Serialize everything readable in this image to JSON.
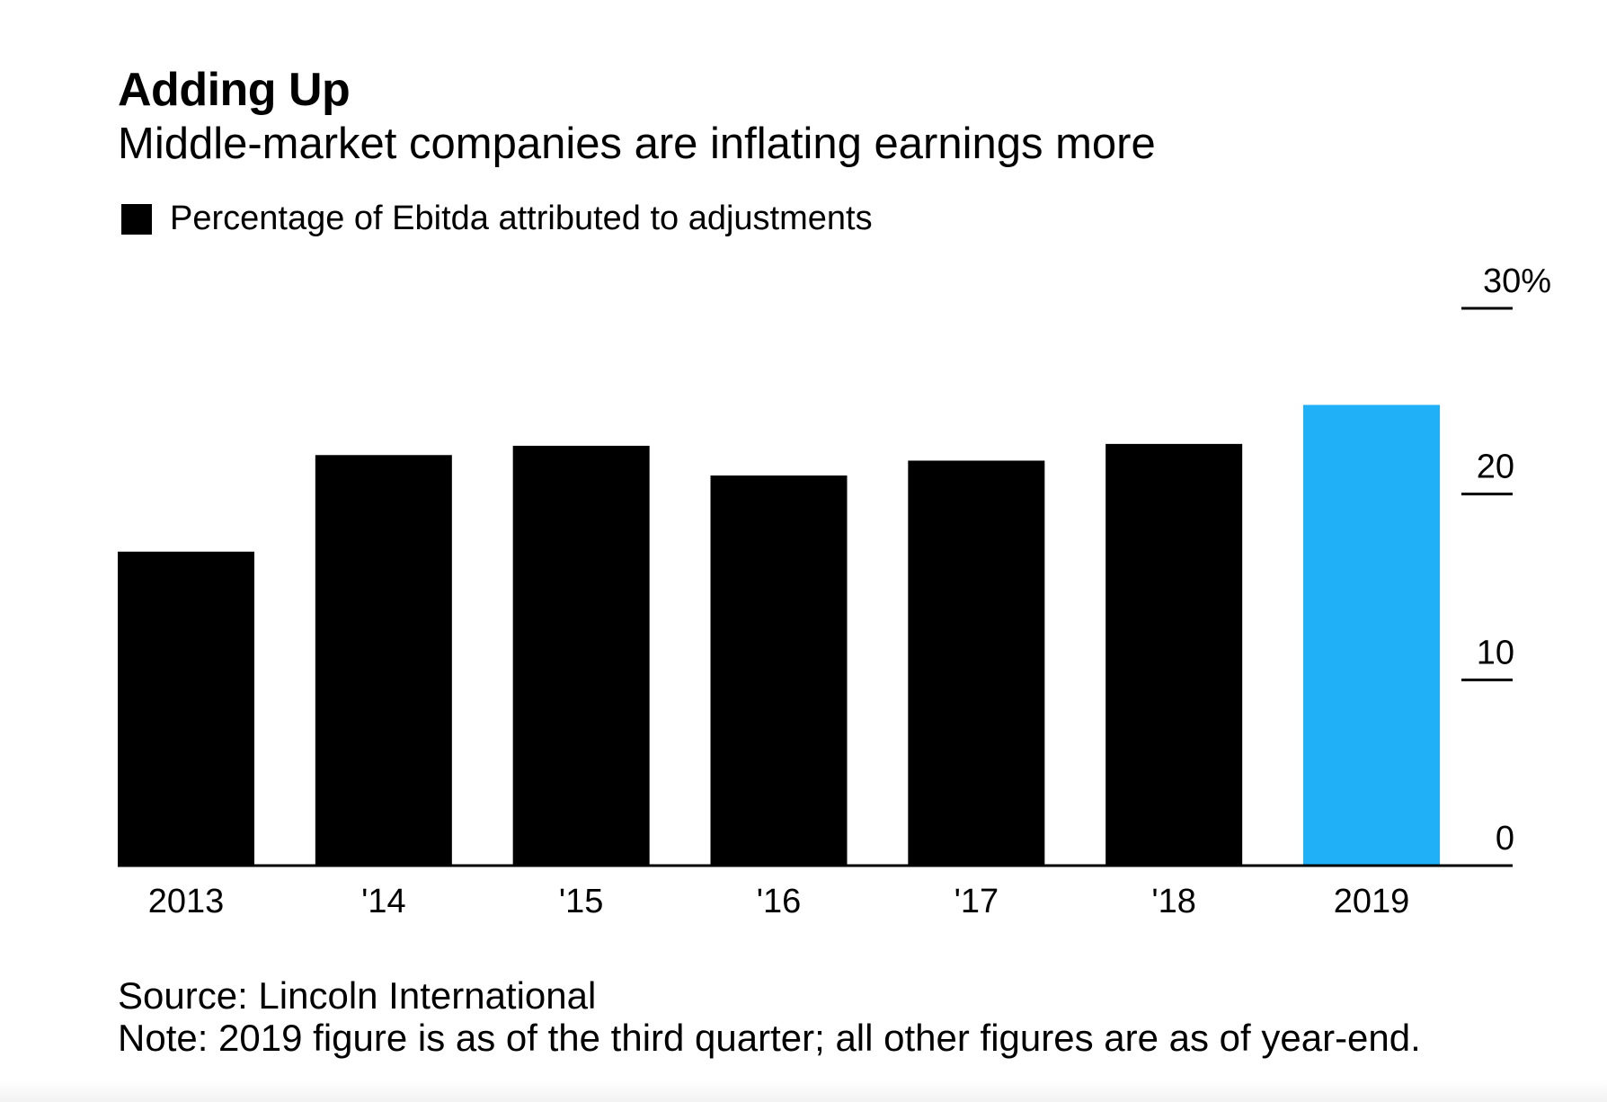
{
  "chart_data": {
    "type": "bar",
    "title": "Adding Up",
    "subtitle": "Middle-market companies are inflating earnings more",
    "legend": [
      {
        "label": "Percentage of Ebitda attributed to adjustments",
        "color": "#000000"
      }
    ],
    "categories": [
      "2013",
      "'14",
      "'15",
      "'16",
      "'17",
      "'18",
      "2019"
    ],
    "values": [
      16.9,
      22.1,
      22.6,
      21.0,
      21.8,
      22.7,
      24.8
    ],
    "bar_colors": [
      "#000000",
      "#000000",
      "#000000",
      "#000000",
      "#000000",
      "#000000",
      "#1fb0f8"
    ],
    "ylim": [
      0,
      30
    ],
    "yticks": [
      0,
      10,
      20,
      30
    ],
    "ytick_labels": [
      "0",
      "10",
      "20",
      "30%"
    ],
    "yaxis_position": "right",
    "xlabel": "",
    "ylabel": "",
    "grid": false
  },
  "footer": {
    "source": "Source: Lincoln International",
    "note": "Note: 2019 figure is as of the third quarter; all other figures are as of year-end."
  }
}
